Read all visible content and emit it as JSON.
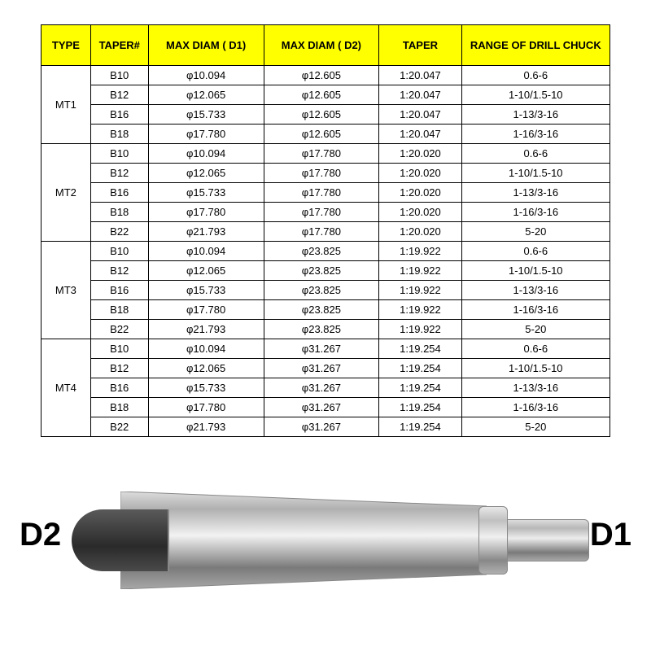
{
  "table": {
    "headers": [
      "TYPE",
      "TAPER#",
      "MAX DIAM ( D1)",
      "MAX DIAM ( D2)",
      "TAPER",
      "RANGE OF DRILL CHUCK"
    ],
    "col_widths": [
      "60px",
      "70px",
      "140px",
      "140px",
      "100px",
      "180px"
    ],
    "header_bg": "#ffff00",
    "border_color": "#000000",
    "groups": [
      {
        "type": "MT1",
        "rows": [
          {
            "taper_num": "B10",
            "d1": "φ10.094",
            "d2": "φ12.605",
            "taper": "1:20.047",
            "range": "0.6-6"
          },
          {
            "taper_num": "B12",
            "d1": "φ12.065",
            "d2": "φ12.605",
            "taper": "1:20.047",
            "range": "1-10/1.5-10"
          },
          {
            "taper_num": "B16",
            "d1": "φ15.733",
            "d2": "φ12.605",
            "taper": "1:20.047",
            "range": "1-13/3-16"
          },
          {
            "taper_num": "B18",
            "d1": "φ17.780",
            "d2": "φ12.605",
            "taper": "1:20.047",
            "range": "1-16/3-16"
          }
        ]
      },
      {
        "type": "MT2",
        "rows": [
          {
            "taper_num": "B10",
            "d1": "φ10.094",
            "d2": "φ17.780",
            "taper": "1:20.020",
            "range": "0.6-6"
          },
          {
            "taper_num": "B12",
            "d1": "φ12.065",
            "d2": "φ17.780",
            "taper": "1:20.020",
            "range": "1-10/1.5-10"
          },
          {
            "taper_num": "B16",
            "d1": "φ15.733",
            "d2": "φ17.780",
            "taper": "1:20.020",
            "range": "1-13/3-16"
          },
          {
            "taper_num": "B18",
            "d1": "φ17.780",
            "d2": "φ17.780",
            "taper": "1:20.020",
            "range": "1-16/3-16"
          },
          {
            "taper_num": "B22",
            "d1": "φ21.793",
            "d2": "φ17.780",
            "taper": "1:20.020",
            "range": "5-20"
          }
        ]
      },
      {
        "type": "MT3",
        "rows": [
          {
            "taper_num": "B10",
            "d1": "φ10.094",
            "d2": "φ23.825",
            "taper": "1:19.922",
            "range": "0.6-6"
          },
          {
            "taper_num": "B12",
            "d1": "φ12.065",
            "d2": "φ23.825",
            "taper": "1:19.922",
            "range": "1-10/1.5-10"
          },
          {
            "taper_num": "B16",
            "d1": "φ15.733",
            "d2": "φ23.825",
            "taper": "1:19.922",
            "range": "1-13/3-16"
          },
          {
            "taper_num": "B18",
            "d1": "φ17.780",
            "d2": "φ23.825",
            "taper": "1:19.922",
            "range": "1-16/3-16"
          },
          {
            "taper_num": "B22",
            "d1": "φ21.793",
            "d2": "φ23.825",
            "taper": "1:19.922",
            "range": "5-20"
          }
        ]
      },
      {
        "type": "MT4",
        "rows": [
          {
            "taper_num": "B10",
            "d1": "φ10.094",
            "d2": "φ31.267",
            "taper": "1:19.254",
            "range": "0.6-6"
          },
          {
            "taper_num": "B12",
            "d1": "φ12.065",
            "d2": "φ31.267",
            "taper": "1:19.254",
            "range": "1-10/1.5-10"
          },
          {
            "taper_num": "B16",
            "d1": "φ15.733",
            "d2": "φ31.267",
            "taper": "1:19.254",
            "range": "1-13/3-16"
          },
          {
            "taper_num": "B18",
            "d1": "φ17.780",
            "d2": "φ31.267",
            "taper": "1:19.254",
            "range": "1-16/3-16"
          },
          {
            "taper_num": "B22",
            "d1": "φ21.793",
            "d2": "φ31.267",
            "taper": "1:19.254",
            "range": "5-20"
          }
        ]
      }
    ]
  },
  "diagram": {
    "label_left": "D2",
    "label_right": "D1",
    "label_fontsize": 40,
    "label_fontweight": "bold",
    "colors": {
      "metal_light": "#e8e8e8",
      "metal_mid": "#b8b8b8",
      "metal_dark": "#7a7a7a",
      "tang_dark": "#2f2f2f"
    }
  }
}
